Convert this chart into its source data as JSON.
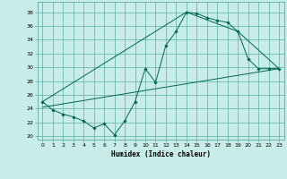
{
  "title": "",
  "xlabel": "Humidex (Indice chaleur)",
  "xlim": [
    -0.5,
    23.5
  ],
  "ylim": [
    19.5,
    39.5
  ],
  "yticks": [
    20,
    22,
    24,
    26,
    28,
    30,
    32,
    34,
    36,
    38
  ],
  "xticks": [
    0,
    1,
    2,
    3,
    4,
    5,
    6,
    7,
    8,
    9,
    10,
    11,
    12,
    13,
    14,
    15,
    16,
    17,
    18,
    19,
    20,
    21,
    22,
    23
  ],
  "bg_color": "#c8ece8",
  "grid_color": "#5aada5",
  "line_color": "#006655",
  "line1_x": [
    0,
    1,
    2,
    3,
    4,
    5,
    6,
    7,
    8,
    9,
    10,
    11,
    12,
    13,
    14,
    15,
    16,
    17,
    18,
    19,
    20,
    21,
    22,
    23
  ],
  "line1_y": [
    25.0,
    23.8,
    23.2,
    22.8,
    22.2,
    21.2,
    21.8,
    20.2,
    22.2,
    25.0,
    29.8,
    27.8,
    33.2,
    35.2,
    38.0,
    37.8,
    37.2,
    36.8,
    36.5,
    35.2,
    31.2,
    29.8,
    29.8,
    29.8
  ],
  "line2_x": [
    0,
    14,
    19,
    23
  ],
  "line2_y": [
    25.0,
    38.0,
    35.2,
    29.8
  ],
  "line3_x": [
    0,
    23
  ],
  "line3_y": [
    24.2,
    29.8
  ],
  "marker_x": [
    0,
    1,
    2,
    3,
    4,
    5,
    6,
    7,
    8,
    9,
    10,
    11,
    12,
    13,
    14,
    15,
    16,
    17,
    18,
    19,
    20,
    21,
    22,
    23
  ],
  "marker_y": [
    25.0,
    23.8,
    23.2,
    22.8,
    22.2,
    21.2,
    21.8,
    20.2,
    22.2,
    25.0,
    29.8,
    27.8,
    33.2,
    35.2,
    38.0,
    37.8,
    37.2,
    36.8,
    36.5,
    35.2,
    31.2,
    29.8,
    29.8,
    29.8
  ]
}
